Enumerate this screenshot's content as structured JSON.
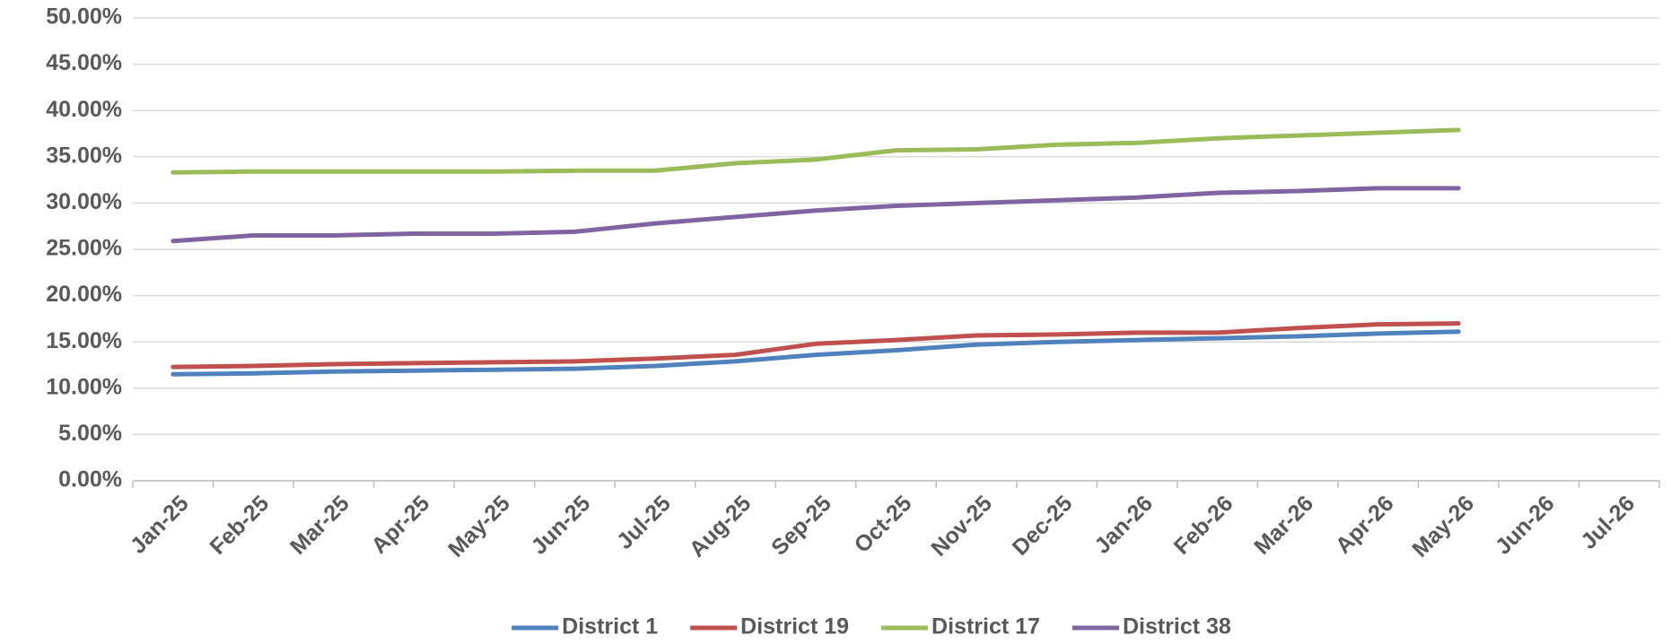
{
  "chart_data": {
    "type": "line",
    "categories": [
      "Jan-25",
      "Feb-25",
      "Mar-25",
      "Apr-25",
      "May-25",
      "Jun-25",
      "Jul-25",
      "Aug-25",
      "Sep-25",
      "Oct-25",
      "Nov-25",
      "Dec-25",
      "Jan-26",
      "Feb-26",
      "Mar-26",
      "Apr-26",
      "May-26",
      "Jun-26",
      "Jul-26"
    ],
    "series": [
      {
        "name": "District 1",
        "color": "#4f81bd",
        "values": [
          11.5,
          11.6,
          11.8,
          11.9,
          12.0,
          12.1,
          12.4,
          12.9,
          13.6,
          14.1,
          14.7,
          15.0,
          15.2,
          15.4,
          15.6,
          15.9,
          16.1,
          null,
          null
        ]
      },
      {
        "name": "District 19",
        "color": "#c0504d",
        "values": [
          12.3,
          12.4,
          12.6,
          12.7,
          12.8,
          12.9,
          13.2,
          13.6,
          14.8,
          15.2,
          15.7,
          15.8,
          16.0,
          16.0,
          16.5,
          16.9,
          17.0,
          null,
          null
        ]
      },
      {
        "name": "District 17",
        "color": "#9bbb59",
        "values": [
          33.3,
          33.4,
          33.4,
          33.4,
          33.4,
          33.5,
          33.5,
          34.3,
          34.7,
          35.7,
          35.8,
          36.3,
          36.5,
          37.0,
          37.3,
          37.6,
          37.9,
          null,
          null
        ]
      },
      {
        "name": "District 38",
        "color": "#8064a2",
        "values": [
          25.9,
          26.5,
          26.5,
          26.7,
          26.7,
          26.9,
          27.8,
          28.5,
          29.2,
          29.7,
          30.0,
          30.3,
          30.6,
          31.1,
          31.3,
          31.6,
          31.6,
          null,
          null
        ]
      }
    ],
    "ylim": [
      0,
      50
    ],
    "yticks": [
      {
        "value": 0,
        "label": "0.00%"
      },
      {
        "value": 5,
        "label": "5.00%"
      },
      {
        "value": 10,
        "label": "10.00%"
      },
      {
        "value": 15,
        "label": "15.00%"
      },
      {
        "value": 20,
        "label": "20.00%"
      },
      {
        "value": 25,
        "label": "25.00%"
      },
      {
        "value": 30,
        "label": "30.00%"
      },
      {
        "value": 35,
        "label": "35.00%"
      },
      {
        "value": 40,
        "label": "40.00%"
      },
      {
        "value": 45,
        "label": "45.00%"
      },
      {
        "value": 50,
        "label": "50.00%"
      }
    ],
    "grid": true,
    "legend": "bottom"
  }
}
